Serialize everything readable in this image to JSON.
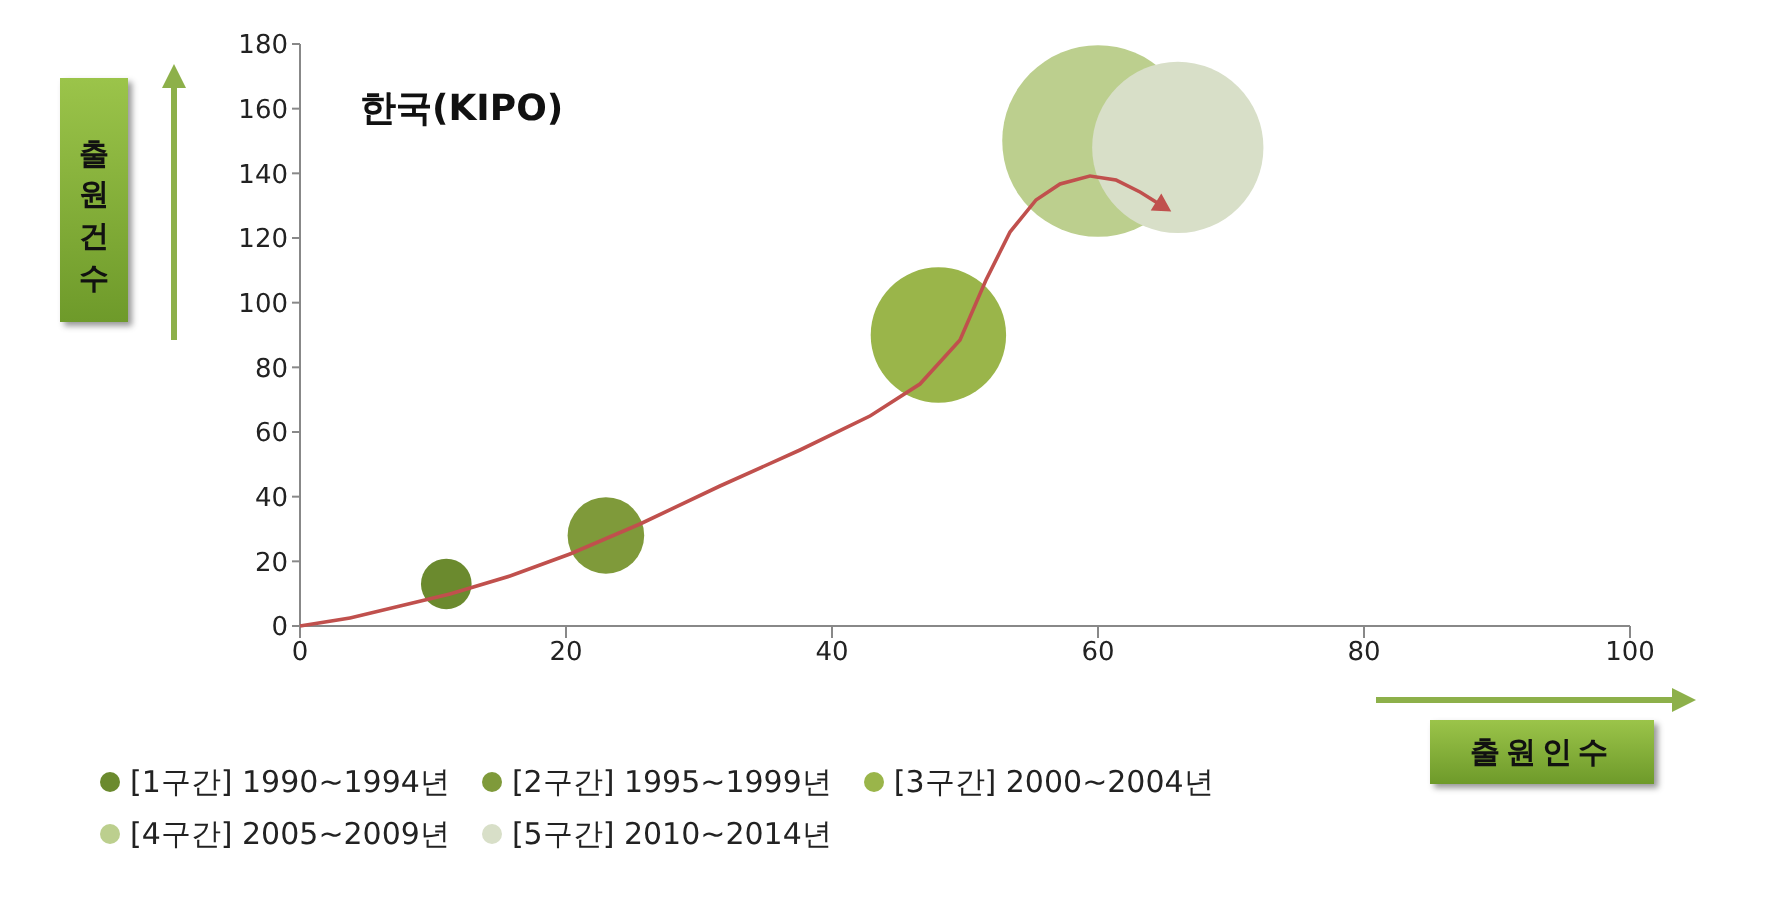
{
  "chart_data": {
    "type": "bubble",
    "title": "한국(KIPO)",
    "xlabel": "출원인수",
    "ylabel": "출원건수",
    "xlim": [
      0,
      100
    ],
    "xticks": [
      0,
      20,
      40,
      60,
      80,
      100
    ],
    "ylim": [
      0,
      180
    ],
    "yticks": [
      0,
      20,
      40,
      60,
      80,
      100,
      120,
      140,
      160,
      180
    ],
    "grid": false,
    "legend": "bottom",
    "series": [
      {
        "name": "[1구간] 1990~1994년",
        "color": "#6b8a2e",
        "x": [
          11
        ],
        "values": [
          13
        ],
        "sizes": [
          0.07
        ]
      },
      {
        "name": "[2구간] 1995~1999년",
        "color": "#7f9a3a",
        "x": [
          23
        ],
        "values": [
          28
        ],
        "sizes": [
          0.16
        ]
      },
      {
        "name": "[3구간] 2000~2004년",
        "color": "#9ab54a",
        "x": [
          48
        ],
        "values": [
          90
        ],
        "sizes": [
          0.5
        ]
      },
      {
        "name": "[4구간] 2005~2009년",
        "color": "#bccf8e",
        "x": [
          60
        ],
        "values": [
          150
        ],
        "sizes": [
          1
        ]
      },
      {
        "name": "[5구간] 2010~2014년",
        "color": "#d8dfc8",
        "x": [
          66
        ],
        "values": [
          148
        ],
        "sizes": [
          0.8
        ]
      }
    ]
  }
}
